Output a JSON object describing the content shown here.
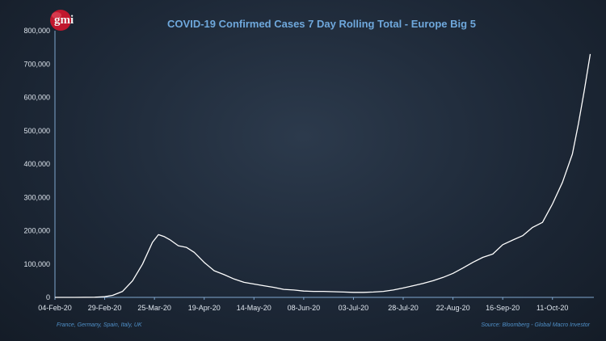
{
  "logo": {
    "text": "gmi"
  },
  "footnote_left": "France, Germany, Spain, Italy, UK",
  "footnote_right": "Source: Bloomberg - Global Macro Investor",
  "colors": {
    "line": "#ffffff",
    "axis": "#7fa7cf",
    "title": "#6fa8dc",
    "logo": "#c0172e"
  },
  "chart_data": {
    "type": "line",
    "title": "COVID-19  Confirmed Cases 7 Day Rolling Total - Europe Big 5",
    "xlabel": "",
    "ylabel": "",
    "ylim": [
      0,
      800000
    ],
    "yticks": [
      "0",
      "100,000",
      "200,000",
      "300,000",
      "400,000",
      "500,000",
      "600,000",
      "700,000",
      "800,000"
    ],
    "xticks": [
      "04-Feb-20",
      "29-Feb-20",
      "25-Mar-20",
      "19-Apr-20",
      "14-May-20",
      "08-Jun-20",
      "03-Jul-20",
      "28-Jul-20",
      "22-Aug-20",
      "16-Sep-20",
      "11-Oct-20"
    ],
    "xrange": [
      "04-Feb-20",
      "31-Oct-20"
    ],
    "grid": false,
    "series": [
      {
        "x": [
          "04-Feb-20",
          "14-Feb-20",
          "24-Feb-20",
          "29-Feb-20",
          "04-Mar-20",
          "09-Mar-20",
          "14-Mar-20",
          "19-Mar-20",
          "24-Mar-20",
          "27-Mar-20",
          "30-Mar-20",
          "02-Apr-20",
          "06-Apr-20",
          "10-Apr-20",
          "14-Apr-20",
          "19-Apr-20",
          "24-Apr-20",
          "29-Apr-20",
          "04-May-20",
          "09-May-20",
          "14-May-20",
          "19-May-20",
          "24-May-20",
          "29-May-20",
          "03-Jun-20",
          "08-Jun-20",
          "13-Jun-20",
          "18-Jun-20",
          "23-Jun-20",
          "28-Jun-20",
          "03-Jul-20",
          "08-Jul-20",
          "13-Jul-20",
          "18-Jul-20",
          "23-Jul-20",
          "28-Jul-20",
          "02-Aug-20",
          "07-Aug-20",
          "12-Aug-20",
          "17-Aug-20",
          "22-Aug-20",
          "27-Aug-20",
          "01-Sep-20",
          "06-Sep-20",
          "11-Sep-20",
          "16-Sep-20",
          "21-Sep-20",
          "26-Sep-20",
          "01-Oct-20",
          "06-Oct-20",
          "11-Oct-20",
          "16-Oct-20",
          "21-Oct-20",
          "24-Oct-20",
          "27-Oct-20",
          "30-Oct-20"
        ],
        "values": [
          0,
          0,
          500,
          2000,
          6000,
          18000,
          50000,
          100000,
          165000,
          188000,
          182000,
          172000,
          155000,
          150000,
          135000,
          105000,
          80000,
          68000,
          55000,
          45000,
          40000,
          35000,
          30000,
          24000,
          22000,
          19000,
          18000,
          18000,
          17000,
          16000,
          15000,
          15000,
          16000,
          18000,
          22000,
          28000,
          35000,
          42000,
          50000,
          60000,
          72000,
          88000,
          105000,
          120000,
          130000,
          158000,
          172000,
          185000,
          210000,
          225000,
          280000,
          345000,
          430000,
          520000,
          620000,
          730000
        ]
      }
    ]
  }
}
